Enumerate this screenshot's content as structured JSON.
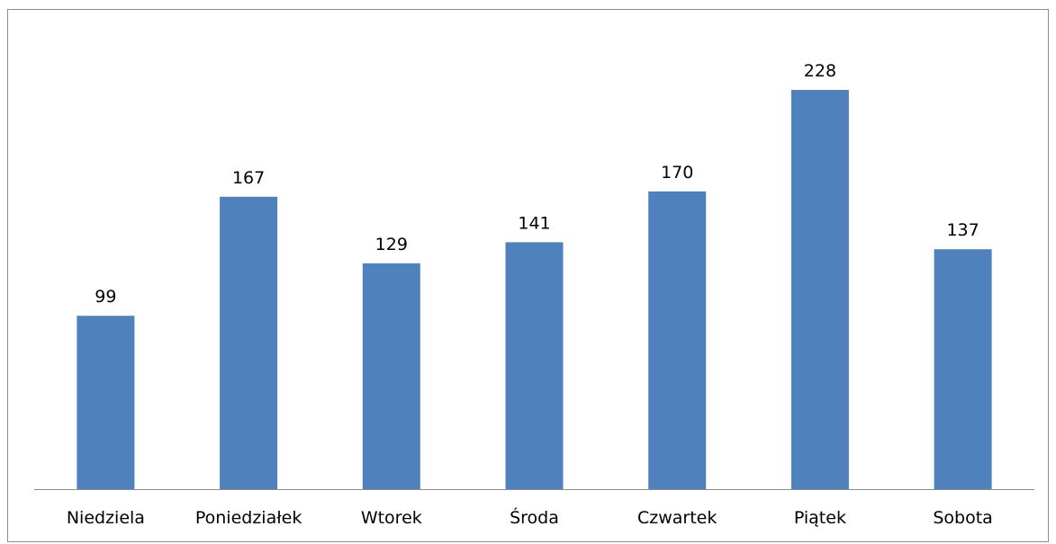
{
  "chart_data": {
    "type": "bar",
    "title": "",
    "xlabel": "",
    "ylabel": "",
    "categories": [
      "Niedziela",
      "Poniedziałek",
      "Wtorek",
      "Środa",
      "Czwartek",
      "Piątek",
      "Sobota"
    ],
    "values": [
      99,
      167,
      129,
      141,
      170,
      228,
      137
    ],
    "data_labels": [
      "99",
      "167",
      "129",
      "141",
      "170",
      "228",
      "137"
    ],
    "ylim": [
      0,
      250
    ],
    "grid": false,
    "legend": "none",
    "colors": {
      "bar": "#4F81BD",
      "axis": "#8C8C8C",
      "border": "#8C8C8C",
      "text": "#000000"
    }
  }
}
